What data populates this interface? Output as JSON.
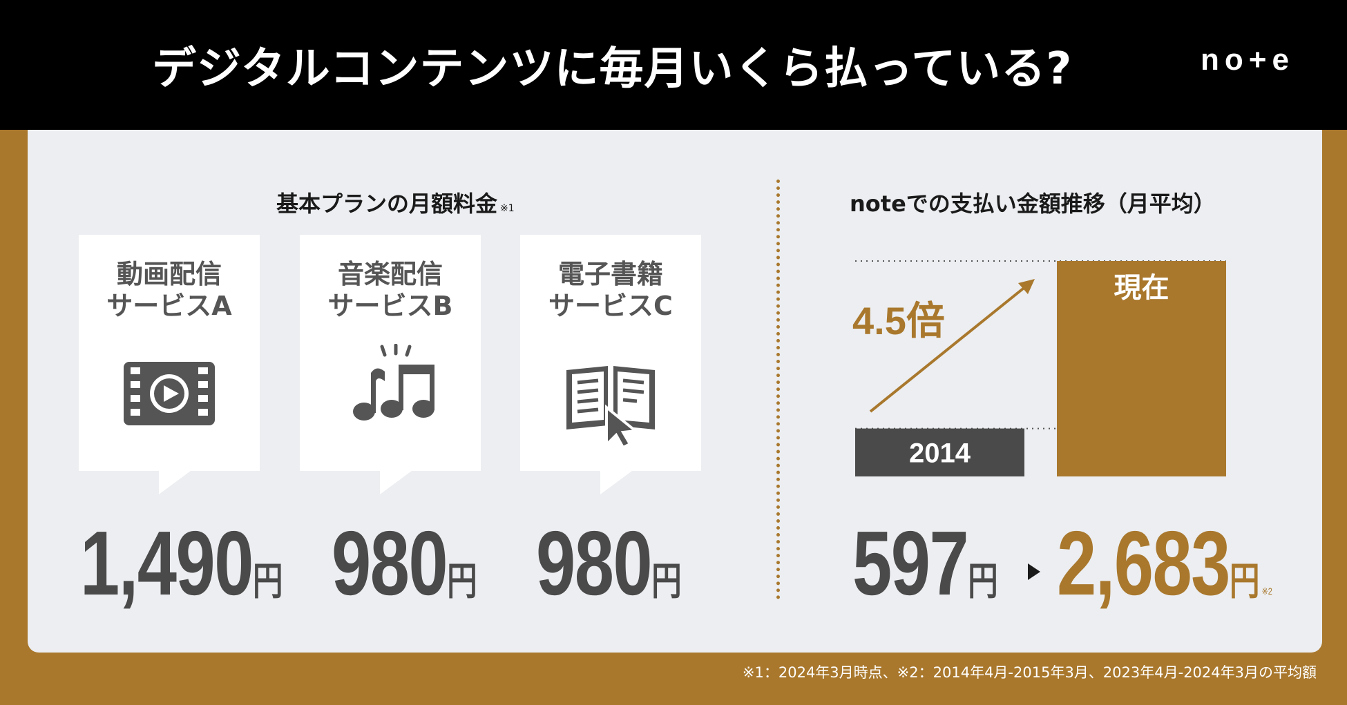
{
  "header": {
    "title": "デジタルコンテンツに毎月いくら払っている?",
    "logo": "no+e"
  },
  "left": {
    "title": "基本プランの月額料金",
    "title_note": "※1",
    "cards": [
      {
        "line1": "動画配信",
        "line2": "サービスA",
        "icon": "video-icon",
        "price": "1,490",
        "unit": "円"
      },
      {
        "line1": "音楽配信",
        "line2": "サービスB",
        "icon": "music-icon",
        "price": "980",
        "unit": "円"
      },
      {
        "line1": "電子書籍",
        "line2": "サービスC",
        "icon": "ebook-icon",
        "price": "980",
        "unit": "円"
      }
    ]
  },
  "right": {
    "title": "noteでの支払い金額推移（月平均）",
    "multiplier": "4.5倍",
    "from_price": "597",
    "to_price": "2,683",
    "unit": "円",
    "to_note": "※2"
  },
  "chart_data": {
    "type": "bar",
    "title": "noteでの支払い金額推移（月平均）",
    "categories": [
      "2014",
      "現在"
    ],
    "values": [
      597,
      2683
    ],
    "colors": [
      "#4a4a4a",
      "#a9782d"
    ],
    "annotation": "4.5倍",
    "xlabel": "",
    "ylabel": ""
  },
  "footnote": "※1：2024年3月時点、※2：2014年4月-2015年3月、2023年4月-2024年3月の平均額",
  "colors": {
    "accent": "#a9782d",
    "dark": "#4a4a4a",
    "panel": "#eceef1",
    "header": "#000000"
  }
}
